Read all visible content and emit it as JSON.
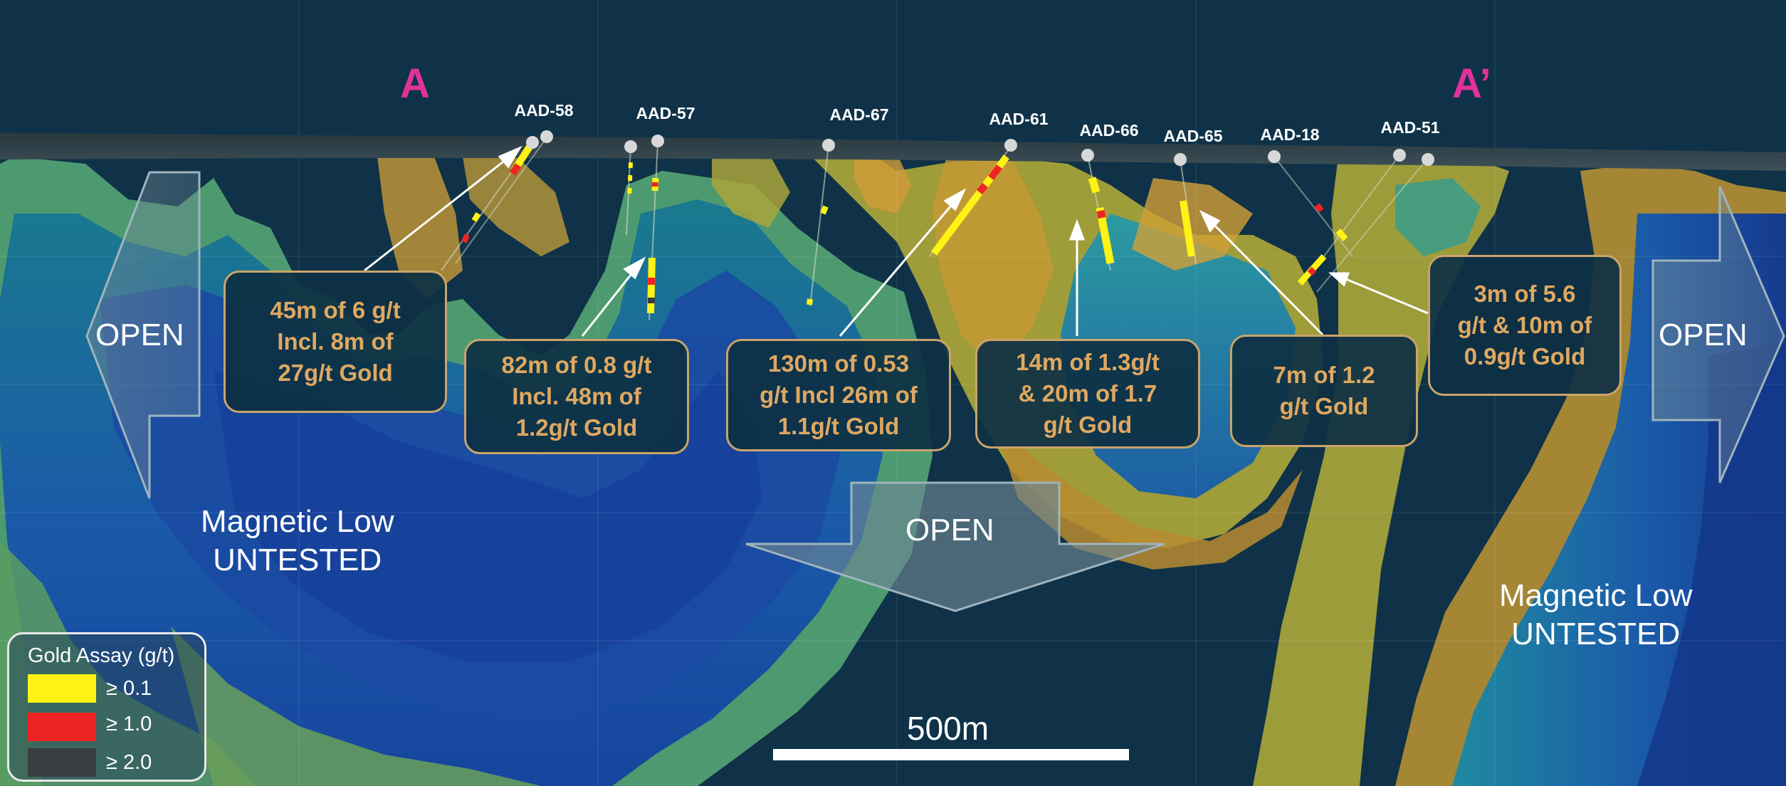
{
  "section": {
    "start_label": "A",
    "end_label": "A’"
  },
  "drillholes": [
    {
      "id": "AAD-58"
    },
    {
      "id": "AAD-57"
    },
    {
      "id": "AAD-67"
    },
    {
      "id": "AAD-61"
    },
    {
      "id": "AAD-66"
    },
    {
      "id": "AAD-65"
    },
    {
      "id": "AAD-18"
    },
    {
      "id": "AAD-51"
    }
  ],
  "callouts": [
    {
      "lines": [
        "45m of 6 g/t",
        "Incl. 8m of",
        "27g/t Gold"
      ]
    },
    {
      "lines": [
        "82m of 0.8 g/t",
        "Incl. 48m of",
        "1.2g/t Gold"
      ]
    },
    {
      "lines": [
        "130m of 0.53",
        "g/t Incl 26m of",
        "1.1g/t Gold"
      ]
    },
    {
      "lines": [
        "14m of 1.3g/t",
        "& 20m of 1.7",
        "g/t Gold"
      ]
    },
    {
      "lines": [
        "7m of 1.2",
        "g/t Gold"
      ]
    },
    {
      "lines": [
        "3m of 5.6",
        "g/t & 10m of",
        "0.9g/t Gold"
      ]
    }
  ],
  "open_labels": {
    "left": "OPEN",
    "right": "OPEN",
    "down": "OPEN"
  },
  "magnetic_lows": [
    {
      "line1": "Magnetic Low",
      "line2": "UNTESTED"
    },
    {
      "line1": "Magnetic Low",
      "line2": "UNTESTED"
    }
  ],
  "legend": {
    "title": "Gold Assay (g/t)",
    "items": [
      {
        "label": "≥ 0.1",
        "color": "#fff215"
      },
      {
        "label": "≥ 1.0",
        "color": "#ee2424"
      },
      {
        "label": "≥ 2.0",
        "color": "#3a3d40"
      }
    ]
  },
  "scale_bar": {
    "label": "500m"
  },
  "colors": {
    "background": "#0f3248",
    "callout_border": "#c9a46a",
    "callout_text": "#dfa861",
    "section_letter": "#e0329a"
  }
}
